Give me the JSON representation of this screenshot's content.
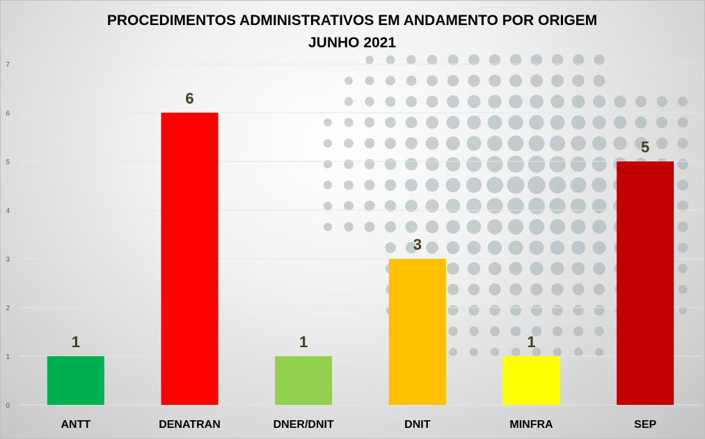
{
  "chart_data": {
    "type": "bar",
    "title": "PROCEDIMENTOS ADMINISTRATIVOS EM ANDAMENTO POR ORIGEM",
    "subtitle": "JUNHO 2021",
    "categories": [
      "ANTT",
      "DENATRAN",
      "DNER/DNIT",
      "DNIT",
      "MINFRA",
      "SEP"
    ],
    "values": [
      1,
      6,
      1,
      3,
      1,
      5
    ],
    "colors": [
      "#00b050",
      "#ff0000",
      "#92d050",
      "#ffc000",
      "#ffff00",
      "#c00000"
    ],
    "xlabel": "",
    "ylabel": "",
    "ylim": [
      0,
      7
    ],
    "yticks": [
      0,
      1,
      2,
      3,
      4,
      5,
      6,
      7
    ],
    "grid": true,
    "legend": "none"
  }
}
